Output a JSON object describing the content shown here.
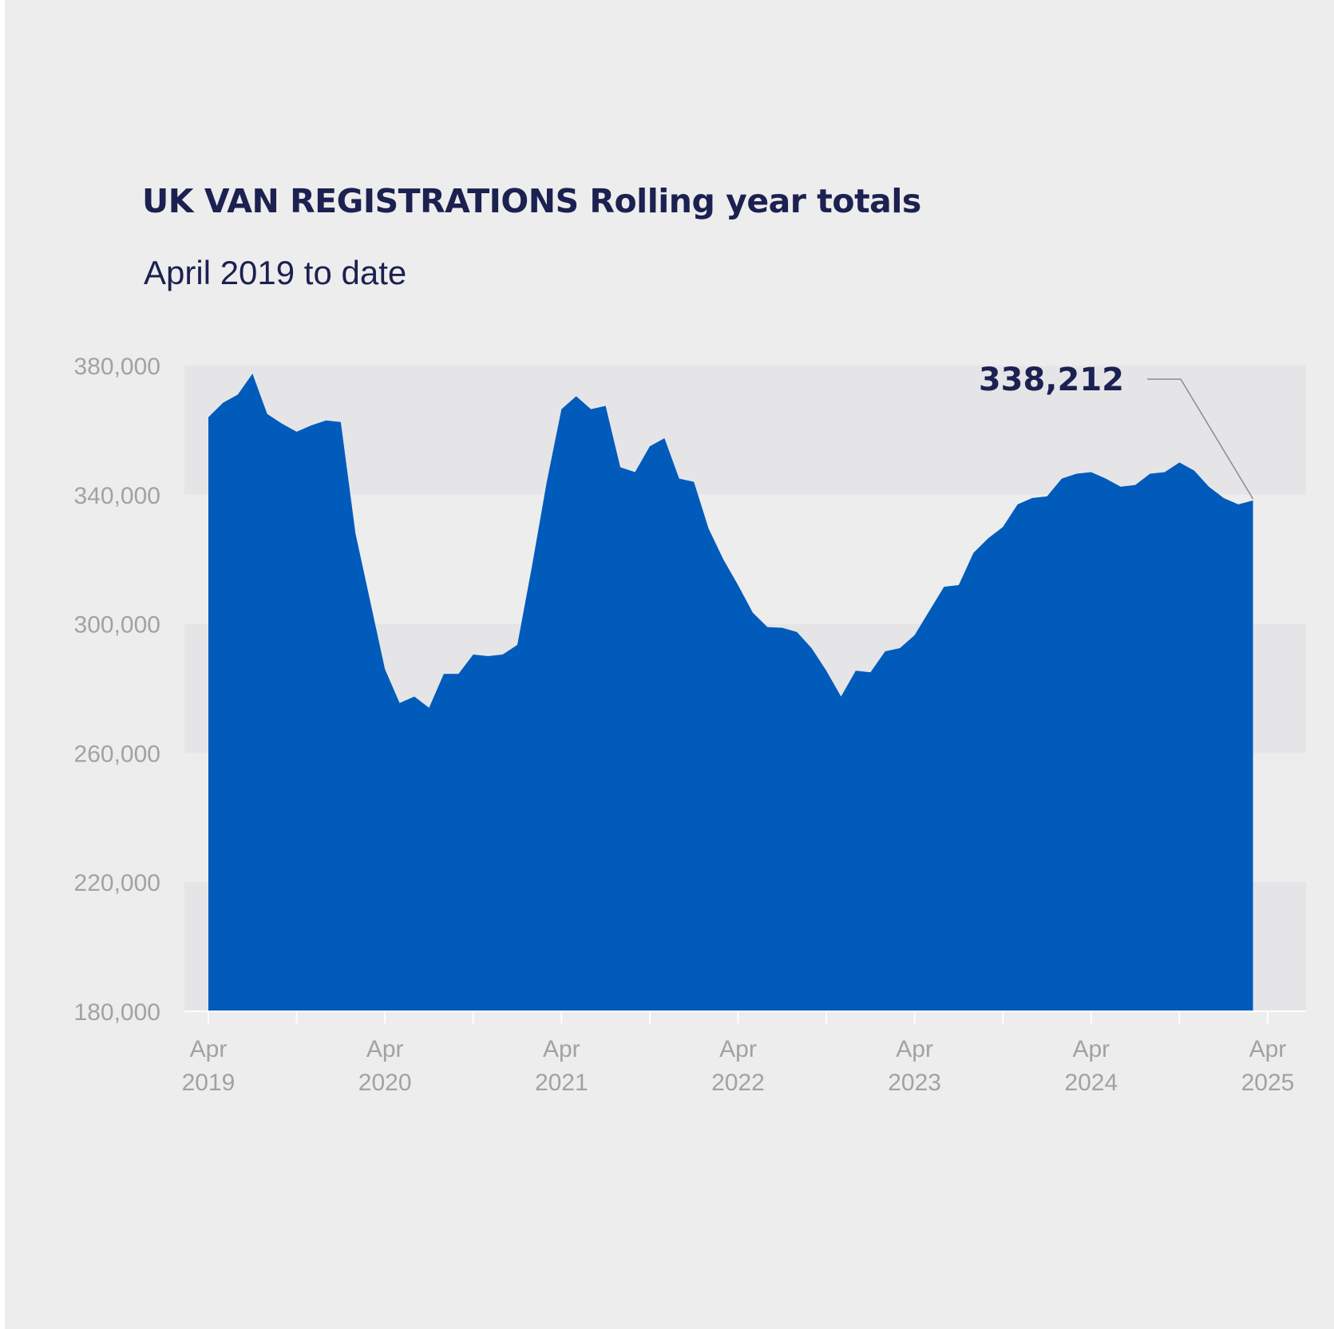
{
  "title": "UK VAN REGISTRATIONS Rolling year totals",
  "subtitle": "April 2019 to date",
  "colors": {
    "background": "#ededed",
    "band": "#e5e5e7",
    "area": "#005bbb",
    "title": "#1b2150",
    "axis_text": "#a2a2a2",
    "axis_line": "#ffffff",
    "callout_line": "#8c8c8c"
  },
  "chart_data": {
    "type": "area",
    "title": "UK VAN REGISTRATIONS Rolling year totals",
    "subtitle": "April 2019 to date",
    "xlabel": "",
    "ylabel": "",
    "ylim": [
      180000,
      380000
    ],
    "y_ticks": [
      {
        "value": 380000,
        "label": "380,000"
      },
      {
        "value": 340000,
        "label": "340,000"
      },
      {
        "value": 300000,
        "label": "300,000"
      },
      {
        "value": 260000,
        "label": "260,000"
      },
      {
        "value": 220000,
        "label": "220,000"
      },
      {
        "value": 180000,
        "label": "180,000"
      }
    ],
    "x_ticks": [
      {
        "month": 0,
        "line1": "Apr",
        "line2": "2019"
      },
      {
        "month": 12,
        "line1": "Apr",
        "line2": "2020"
      },
      {
        "month": 24,
        "line1": "Apr",
        "line2": "2021"
      },
      {
        "month": 36,
        "line1": "Apr",
        "line2": "2022"
      },
      {
        "month": 48,
        "line1": "Apr",
        "line2": "2023"
      },
      {
        "month": 60,
        "line1": "Apr",
        "line2": "2024"
      },
      {
        "month": 72,
        "line1": "Apr",
        "line2": "2025"
      }
    ],
    "grid": false,
    "legend": "none",
    "series": [
      {
        "values": [
          364000,
          368500,
          371000,
          377500,
          365000,
          362000,
          359500,
          361500,
          363000,
          362500,
          328000,
          307000,
          286000,
          275500,
          277500,
          274000,
          284500,
          284500,
          290500,
          290000,
          290500,
          293500,
          318000,
          344000,
          366500,
          370500,
          366500,
          367500,
          348500,
          347000,
          355000,
          357500,
          345000,
          344000,
          329500,
          320000,
          312000,
          303500,
          299000,
          298800,
          297500,
          292500,
          285500,
          277500,
          285500,
          285000,
          291500,
          292500,
          296500,
          304000,
          311500,
          312000,
          322000,
          326500,
          330000,
          337000,
          339000,
          339500,
          345000,
          346500,
          347000,
          345000,
          342500,
          343000,
          346500,
          347000,
          350000,
          347500,
          342500,
          339000,
          337000,
          338212
        ]
      }
    ],
    "annotations": [
      {
        "text": "338,212",
        "target": "last"
      }
    ]
  }
}
